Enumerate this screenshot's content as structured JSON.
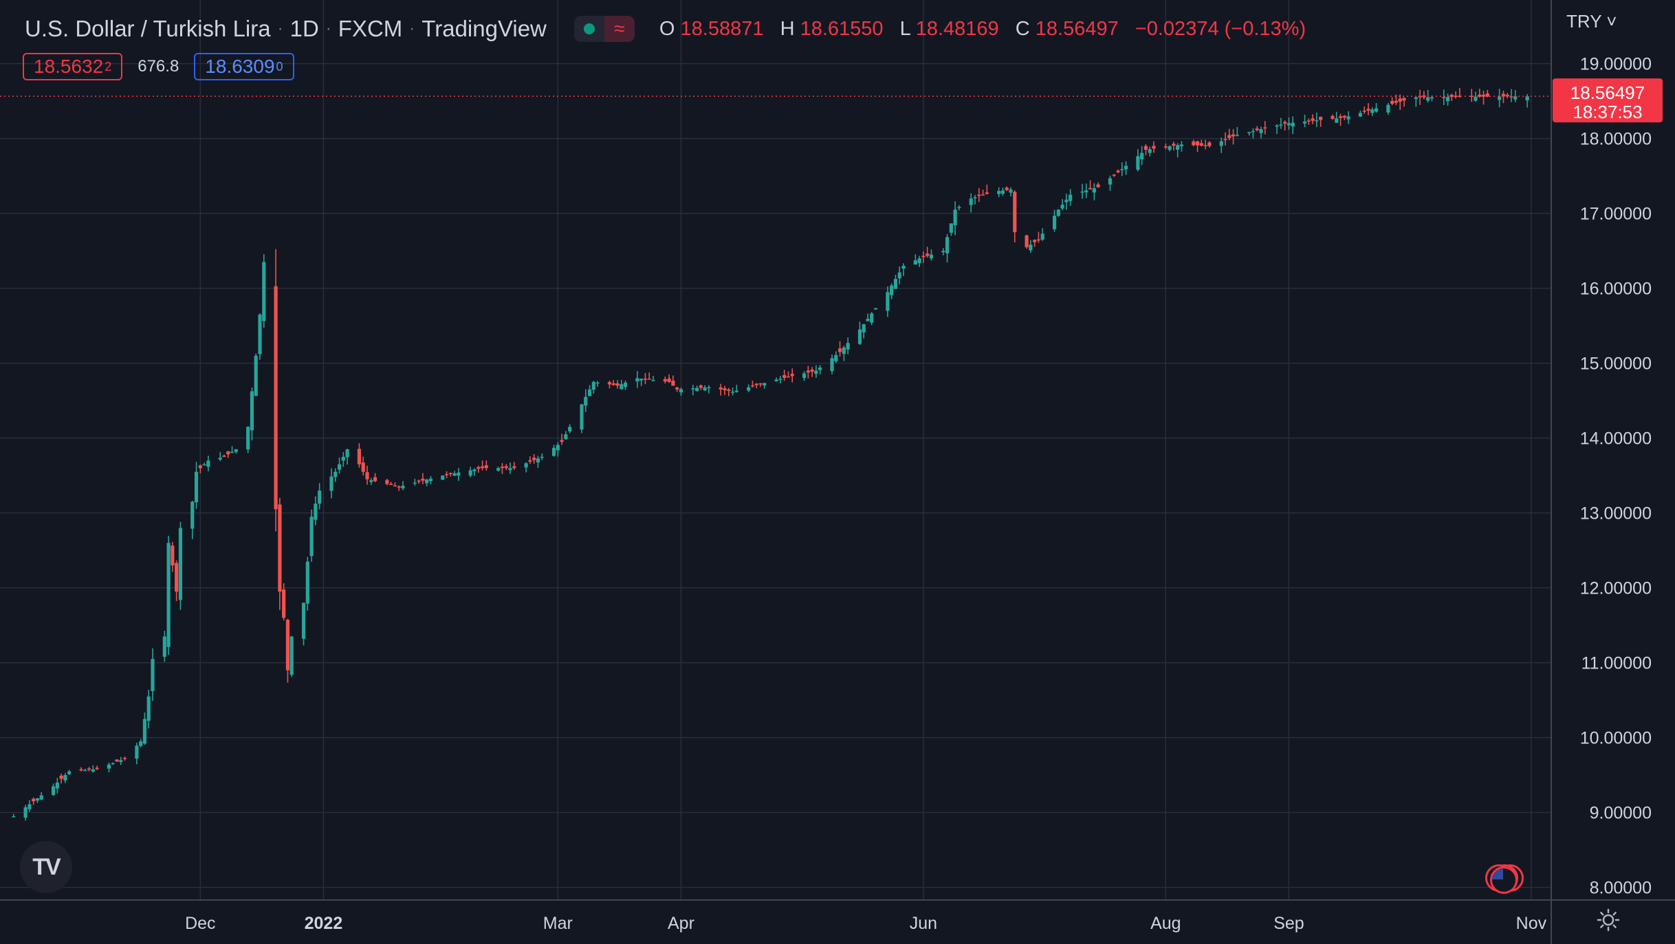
{
  "header": {
    "symbol": "U.S. Dollar / Turkish Lira",
    "interval": "1D",
    "exchange": "FXCM",
    "provider": "TradingView",
    "ohlc": {
      "o_label": "O",
      "o": "18.58871",
      "h_label": "H",
      "h": "18.61550",
      "l_label": "L",
      "l": "18.48169",
      "c_label": "C",
      "c": "18.56497",
      "change": "−0.02374 (−0.13%)"
    }
  },
  "quote": {
    "sell_main": "18.5632",
    "sell_sup": "2",
    "spread": "676.8",
    "buy_main": "18.6309",
    "buy_sup": "0"
  },
  "price_axis": {
    "currency": "TRY",
    "last_price": "18.56497",
    "countdown": "18:37:53"
  },
  "icons": {
    "logo": "tradingview-logo-icon",
    "events": "us-flag-event-icon",
    "settings": "gear-icon"
  },
  "colors": {
    "background": "#131722",
    "up": "#26a69a",
    "down": "#ef5350",
    "grid": "#2a2e39",
    "text": "#d1d4dc"
  },
  "chart_data": {
    "type": "candlestick",
    "y_scale": "linear",
    "ylim": [
      7.85,
      19.85
    ],
    "y_ticks": [
      "8.00000",
      "9.00000",
      "10.00000",
      "11.00000",
      "12.00000",
      "13.00000",
      "14.00000",
      "15.00000",
      "16.00000",
      "17.00000",
      "18.00000",
      "19.00000"
    ],
    "x_ticks": [
      {
        "label": "Dec",
        "date": "2021-12-01"
      },
      {
        "label": "2022",
        "date": "2022-01-01",
        "bold": true
      },
      {
        "label": "Mar",
        "date": "2022-03-01"
      },
      {
        "label": "Apr",
        "date": "2022-04-01"
      },
      {
        "label": "Jun",
        "date": "2022-06-01"
      },
      {
        "label": "Aug",
        "date": "2022-08-01"
      },
      {
        "label": "Sep",
        "date": "2022-09-01"
      },
      {
        "label": "Nov",
        "date": "2022-11-01"
      }
    ],
    "xlim": [
      "2021-10-14",
      "2022-11-05"
    ],
    "last_price": 18.56497,
    "grid": true,
    "anchors": [
      [
        "2021-10-15",
        8.95
      ],
      [
        "2021-10-25",
        9.35
      ],
      [
        "2021-10-29",
        9.55
      ],
      [
        "2021-11-05",
        9.58
      ],
      [
        "2021-11-12",
        9.72
      ],
      [
        "2021-11-16",
        9.95
      ],
      [
        "2021-11-17",
        10.25
      ],
      [
        "2021-11-18",
        10.55
      ],
      [
        "2021-11-19",
        11.05
      ],
      [
        "2021-11-22",
        11.35
      ],
      [
        "2021-11-23",
        12.6
      ],
      [
        "2021-11-24",
        12.3
      ],
      [
        "2021-11-25",
        11.95
      ],
      [
        "2021-11-26",
        12.8
      ],
      [
        "2021-11-29",
        13.15
      ],
      [
        "2021-11-30",
        13.55
      ],
      [
        "2021-12-03",
        13.7
      ],
      [
        "2021-12-07",
        13.75
      ],
      [
        "2021-12-10",
        13.85
      ],
      [
        "2021-12-13",
        14.15
      ],
      [
        "2021-12-15",
        15.1
      ],
      [
        "2021-12-16",
        15.65
      ],
      [
        "2021-12-17",
        16.35
      ],
      [
        "2021-12-20",
        13.05
      ],
      [
        "2021-12-21",
        11.95
      ],
      [
        "2021-12-22",
        11.6
      ],
      [
        "2021-12-23",
        10.9
      ],
      [
        "2021-12-24",
        11.35
      ],
      [
        "2021-12-27",
        11.8
      ],
      [
        "2021-12-28",
        12.35
      ],
      [
        "2021-12-29",
        12.95
      ],
      [
        "2021-12-31",
        13.3
      ],
      [
        "2022-01-04",
        13.55
      ],
      [
        "2022-01-07",
        13.85
      ],
      [
        "2022-01-10",
        13.65
      ],
      [
        "2022-01-12",
        13.45
      ],
      [
        "2022-01-20",
        13.35
      ],
      [
        "2022-01-31",
        13.5
      ],
      [
        "2022-02-10",
        13.6
      ],
      [
        "2022-02-18",
        13.6
      ],
      [
        "2022-02-25",
        13.75
      ],
      [
        "2022-03-02",
        13.95
      ],
      [
        "2022-03-08",
        14.55
      ],
      [
        "2022-03-10",
        14.75
      ],
      [
        "2022-03-16",
        14.7
      ],
      [
        "2022-03-21",
        14.8
      ],
      [
        "2022-03-29",
        14.75
      ],
      [
        "2022-03-31",
        14.65
      ],
      [
        "2022-04-08",
        14.68
      ],
      [
        "2022-04-14",
        14.62
      ],
      [
        "2022-04-25",
        14.78
      ],
      [
        "2022-05-05",
        14.9
      ],
      [
        "2022-05-11",
        15.15
      ],
      [
        "2022-05-16",
        15.45
      ],
      [
        "2022-05-23",
        15.95
      ],
      [
        "2022-05-27",
        16.3
      ],
      [
        "2022-05-31",
        16.4
      ],
      [
        "2022-06-06",
        16.5
      ],
      [
        "2022-06-09",
        17.05
      ],
      [
        "2022-06-13",
        17.2
      ],
      [
        "2022-06-16",
        17.25
      ],
      [
        "2022-06-20",
        17.3
      ],
      [
        "2022-06-23",
        17.32
      ],
      [
        "2022-06-24",
        16.75
      ],
      [
        "2022-06-27",
        16.55
      ],
      [
        "2022-06-30",
        16.65
      ],
      [
        "2022-07-05",
        17.05
      ],
      [
        "2022-07-08",
        17.25
      ],
      [
        "2022-07-15",
        17.35
      ],
      [
        "2022-07-20",
        17.55
      ],
      [
        "2022-07-27",
        17.85
      ],
      [
        "2022-08-05",
        17.92
      ],
      [
        "2022-08-12",
        17.9
      ],
      [
        "2022-08-19",
        18.05
      ],
      [
        "2022-08-31",
        18.2
      ],
      [
        "2022-09-15",
        18.28
      ],
      [
        "2022-09-26",
        18.45
      ],
      [
        "2022-10-03",
        18.55
      ],
      [
        "2022-10-31",
        18.56497
      ]
    ]
  }
}
